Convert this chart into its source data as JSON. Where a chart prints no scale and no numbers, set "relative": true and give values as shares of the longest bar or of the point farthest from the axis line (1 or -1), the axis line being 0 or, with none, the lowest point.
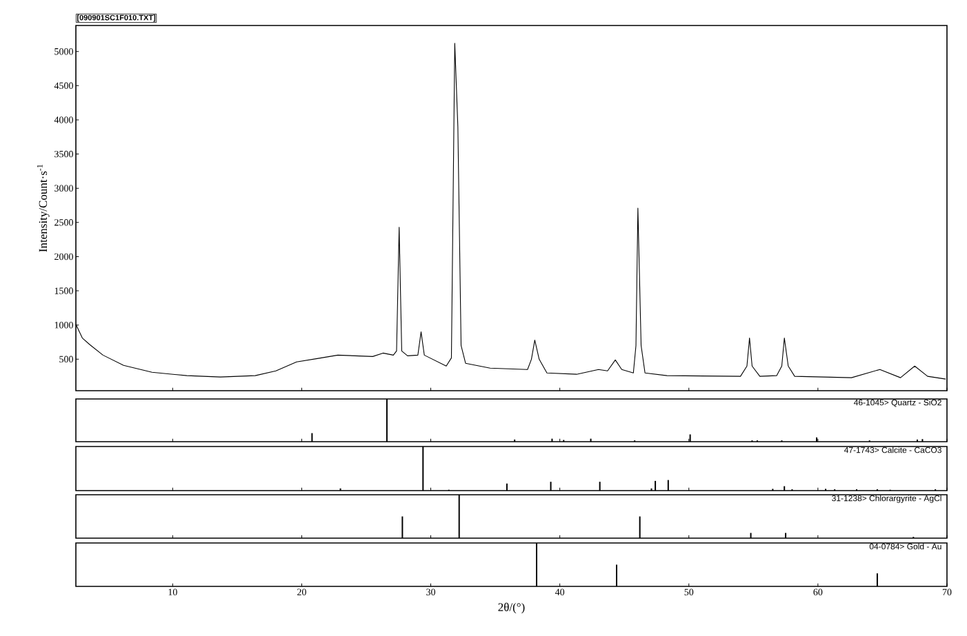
{
  "chart_data": [
    {
      "type": "line",
      "title": "[090901SC1F010.TXT]",
      "ylabel": "Intensity/Count·s$^{-1}$",
      "color": "#000000",
      "x": [
        2.5,
        3.0,
        3.6,
        4.6,
        6.2,
        8.4,
        11.1,
        13.7,
        16.4,
        18.0,
        19.6,
        21.2,
        22.8,
        25.5,
        26.3,
        27.1,
        27.35,
        27.55,
        27.75,
        28.2,
        29.0,
        29.25,
        29.5,
        31.2,
        31.6,
        31.86,
        32.1,
        32.35,
        32.7,
        34.6,
        37.5,
        37.8,
        38.06,
        38.4,
        39.0,
        41.3,
        43.0,
        43.7,
        44.3,
        44.8,
        45.7,
        45.9,
        46.05,
        46.3,
        46.6,
        48.3,
        54.0,
        54.5,
        54.7,
        54.9,
        55.5,
        56.8,
        57.2,
        57.4,
        57.7,
        58.2,
        62.6,
        64.8,
        66.4,
        67.5,
        68.5,
        69.9
      ],
      "values": [
        1010,
        810,
        710,
        560,
        410,
        310,
        260,
        240,
        260,
        330,
        460,
        510,
        560,
        540,
        590,
        560,
        620,
        2430,
        620,
        550,
        560,
        900,
        560,
        400,
        520,
        5120,
        3900,
        700,
        440,
        370,
        350,
        500,
        780,
        500,
        300,
        280,
        350,
        330,
        490,
        350,
        300,
        700,
        2710,
        700,
        300,
        260,
        250,
        400,
        810,
        400,
        250,
        260,
        400,
        810,
        400,
        250,
        230,
        350,
        230,
        400,
        250,
        210
      ],
      "xlim": [
        2.5,
        70
      ],
      "xticks": [
        10,
        20,
        30,
        40,
        50,
        60,
        70
      ],
      "ylim": [
        40,
        5380
      ],
      "yticks": [
        500,
        1000,
        1500,
        2000,
        2500,
        3000,
        3500,
        4000,
        4500,
        5000
      ],
      "tick_labels": "y"
    },
    {
      "type": "bar",
      "title": "46-1045> Quartz - SiO2",
      "color": "#000000",
      "relative": true,
      "xlim": [
        2.5,
        70
      ],
      "xticks": [
        10,
        20,
        30,
        40,
        50,
        60,
        70
      ],
      "tick_labels": false,
      "x": [
        20.8,
        26.6,
        36.5,
        39.4,
        40.3,
        42.4,
        45.8,
        50.1,
        54.9,
        55.3,
        57.2,
        59.9,
        64.0,
        67.7,
        68.1
      ],
      "values": [
        0.2,
        1.0,
        0.05,
        0.07,
        0.04,
        0.07,
        0.03,
        0.17,
        0.03,
        0.03,
        0.03,
        0.1,
        0.03,
        0.05,
        0.06
      ]
    },
    {
      "type": "bar",
      "title": "47-1743> Calcite - CaCO3",
      "color": "#000000",
      "relative": true,
      "xlim": [
        2.5,
        70
      ],
      "xticks": [
        10,
        20,
        30,
        40,
        50,
        60,
        70
      ],
      "tick_labels": false,
      "x": [
        23.0,
        29.4,
        31.4,
        35.9,
        39.3,
        43.1,
        47.1,
        47.4,
        48.4,
        56.5,
        57.4,
        58.0,
        60.6,
        61.3,
        63.0,
        64.6,
        65.6,
        69.1
      ],
      "values": [
        0.05,
        1.0,
        0.02,
        0.16,
        0.2,
        0.2,
        0.05,
        0.22,
        0.24,
        0.04,
        0.1,
        0.03,
        0.04,
        0.03,
        0.03,
        0.03,
        0.02,
        0.03
      ]
    },
    {
      "type": "bar",
      "title": "31-1238> Chlorargyrite - AgCl",
      "color": "#000000",
      "relative": true,
      "xlim": [
        2.5,
        70
      ],
      "xticks": [
        10,
        20,
        30,
        40,
        50,
        60,
        70
      ],
      "tick_labels": false,
      "x": [
        27.8,
        32.2,
        46.2,
        54.8,
        57.5,
        67.4
      ],
      "values": [
        0.5,
        1.0,
        0.5,
        0.12,
        0.12,
        0.03
      ]
    },
    {
      "type": "bar",
      "title": "04-0784> Gold - Au",
      "xlabel": "2θ/(°)",
      "color": "#000000",
      "relative": true,
      "xlim": [
        2.5,
        70
      ],
      "xticks": [
        10,
        20,
        30,
        40,
        50,
        60,
        70
      ],
      "tick_labels": "x",
      "x": [
        38.2,
        44.4,
        64.6
      ],
      "values": [
        1.0,
        0.5,
        0.3
      ]
    }
  ]
}
